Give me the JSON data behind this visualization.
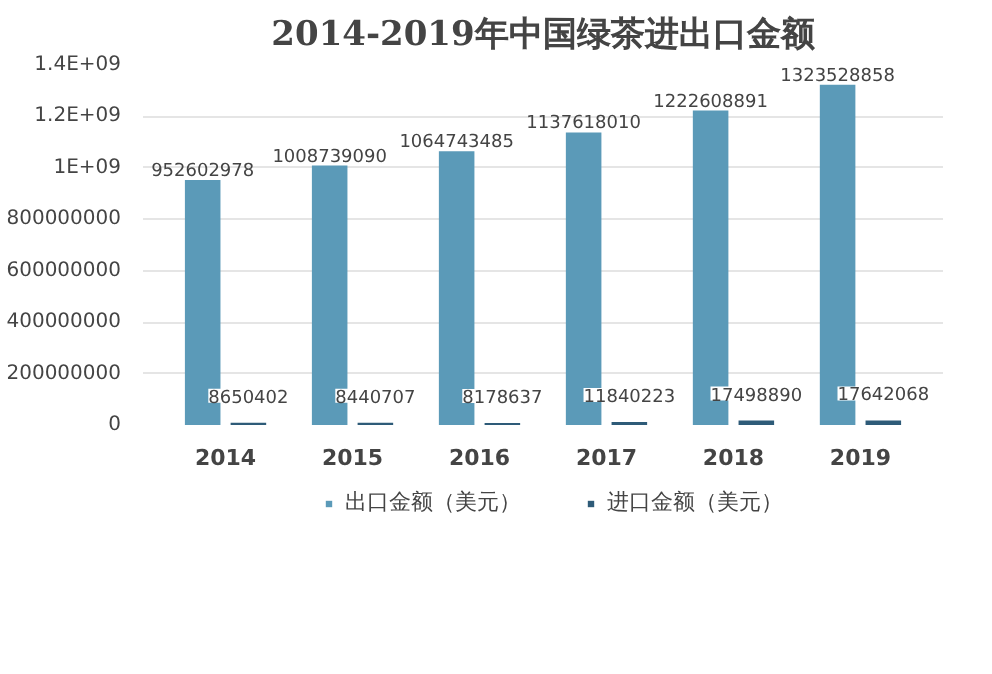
{
  "chart_data": {
    "type": "bar",
    "title": "2014-2019年中国绿茶进出口金额",
    "categories": [
      "2014",
      "2015",
      "2016",
      "2017",
      "2018",
      "2019"
    ],
    "series": [
      {
        "name": "出口金额（美元）",
        "color": "#5b9ab8",
        "values": [
          952602978,
          1008739090,
          1064743485,
          1137618010,
          1222608891,
          1323528858
        ]
      },
      {
        "name": "进口金额（美元）",
        "color": "#2e5b78",
        "values": [
          8650402,
          8440707,
          8178637,
          11840223,
          17498890,
          17642068
        ]
      }
    ],
    "ylim": [
      0,
      1400000000
    ],
    "yticks": [
      0,
      200000000,
      400000000,
      600000000,
      800000000,
      {
        "value": 1000000000,
        "label": "1E+09"
      },
      {
        "value": 1200000000,
        "label": "1.2E+09"
      },
      {
        "value": 1400000000,
        "label": "1.4E+09"
      }
    ],
    "grid": "y",
    "legend": "bottom",
    "data_labels": true
  }
}
